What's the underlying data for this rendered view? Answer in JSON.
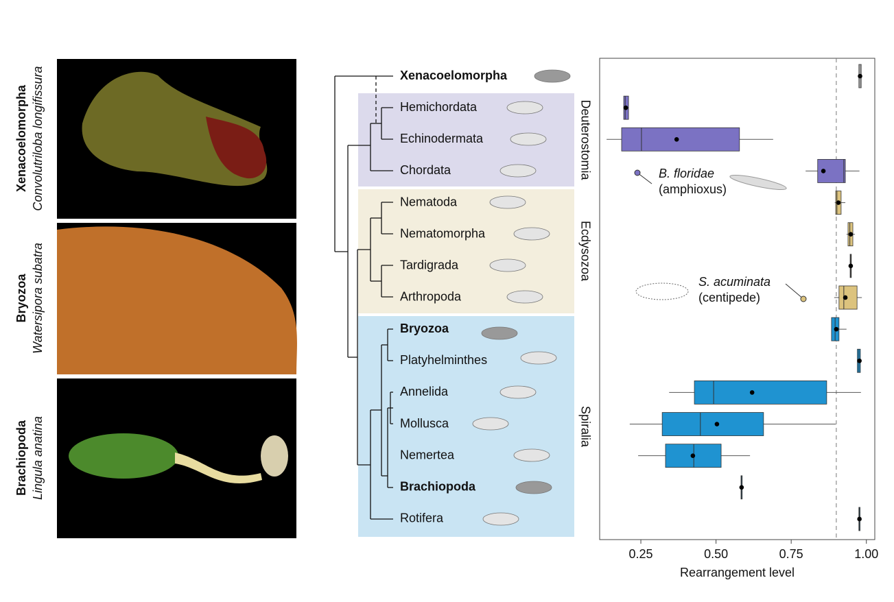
{
  "photos": [
    {
      "group": "Xenacoelomorpha",
      "species": "Convolutriloba longifissura"
    },
    {
      "group": "Bryozoa",
      "species": "Watersipora subatra"
    },
    {
      "group": "Brachiopoda",
      "species": "Lingula anatina"
    }
  ],
  "chart_data": {
    "type": "box",
    "xlabel": "Rearrangement level",
    "categories": [
      "Xenacoelomorpha",
      "Hemichordata",
      "Echinodermata",
      "Chordata",
      "Nematoda",
      "Nematomorpha",
      "Tardigrada",
      "Arthropoda",
      "Bryozoa",
      "Platyhelminthes",
      "Annelida",
      "Mollusca",
      "Nemertea",
      "Brachiopoda",
      "Rotifera"
    ],
    "bold_categories": [
      0,
      8,
      13
    ],
    "outgroup_color": "#dddddd",
    "groups": [
      {
        "name": "Deuterostomia",
        "color": "#7b72c3",
        "background": "#dcdaec",
        "members": [
          1,
          2,
          3
        ]
      },
      {
        "name": "Ecdysozoa",
        "color": "#dcc37e",
        "background": "#f3eedd",
        "members": [
          4,
          5,
          6,
          7
        ]
      },
      {
        "name": "Spiralia",
        "color": "#1f93d1",
        "background": "#c9e4f3",
        "members": [
          8,
          9,
          10,
          11,
          12,
          13,
          14
        ]
      }
    ],
    "boxes": [
      {
        "low": 0.975,
        "q1": 0.975,
        "median": 0.979,
        "q3": 0.983,
        "high": 0.983,
        "mean": 0.979
      },
      {
        "low": 0.193,
        "q1": 0.193,
        "median": 0.198,
        "q3": 0.209,
        "high": 0.209,
        "mean": 0.2
      },
      {
        "low": 0.136,
        "q1": 0.186,
        "median": 0.252,
        "q3": 0.578,
        "high": 0.69,
        "mean": 0.369
      },
      {
        "low": 0.798,
        "q1": 0.838,
        "median": 0.925,
        "q3": 0.93,
        "high": 0.977,
        "mean": 0.857
      },
      {
        "low": 0.895,
        "q1": 0.898,
        "median": 0.902,
        "q3": 0.916,
        "high": 0.93,
        "mean": 0.907
      },
      {
        "low": 0.934,
        "q1": 0.939,
        "median": 0.945,
        "q3": 0.955,
        "high": 0.962,
        "mean": 0.948
      },
      {
        "low": 0.946,
        "q1": 0.946,
        "median": 0.948,
        "q3": 0.95,
        "high": 0.95,
        "mean": 0.948
      },
      {
        "low": 0.893,
        "q1": 0.909,
        "median": 0.925,
        "q3": 0.969,
        "high": 0.985,
        "mean": 0.93
      },
      {
        "low": 0.884,
        "q1": 0.884,
        "median": 0.896,
        "q3": 0.909,
        "high": 0.934,
        "mean": 0.9
      },
      {
        "low": 0.97,
        "q1": 0.97,
        "median": 0.975,
        "q3": 0.98,
        "high": 0.98,
        "mean": 0.977
      },
      {
        "low": 0.344,
        "q1": 0.428,
        "median": 0.492,
        "q3": 0.868,
        "high": 0.982,
        "mean": 0.62
      },
      {
        "low": 0.213,
        "q1": 0.321,
        "median": 0.448,
        "q3": 0.658,
        "high": 0.898,
        "mean": 0.503
      },
      {
        "low": 0.241,
        "q1": 0.332,
        "median": 0.426,
        "q3": 0.517,
        "high": 0.613,
        "mean": 0.423
      },
      {
        "low": 0.583,
        "q1": 0.583,
        "median": 0.585,
        "q3": 0.587,
        "high": 0.587,
        "mean": 0.585
      },
      {
        "low": 0.975,
        "q1": 0.975,
        "median": 0.977,
        "q3": 0.979,
        "high": 0.979,
        "mean": 0.977
      }
    ],
    "reference_line": 0.9,
    "xlim": [
      0.113,
      1.028
    ],
    "xticks": [
      0.25,
      {
        "value": 0.5,
        "label": "0.50"
      },
      0.75,
      {
        "value": 1.0,
        "label": "1.00"
      }
    ],
    "annotations": [
      {
        "text": "B. floridae",
        "subtext": "(amphioxus)"
      },
      {
        "text": "S. acuminata",
        "subtext": "(centipede)"
      }
    ]
  }
}
